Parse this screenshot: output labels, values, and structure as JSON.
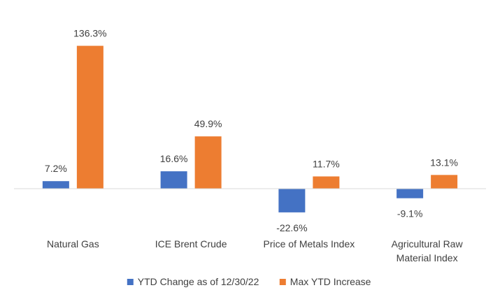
{
  "chart_data": {
    "type": "bar",
    "categories": [
      [
        "Natural Gas"
      ],
      [
        "ICE Brent Crude"
      ],
      [
        "Price of Metals Index"
      ],
      [
        "Agricultural Raw",
        "Material Index"
      ]
    ],
    "series": [
      {
        "name": "YTD Change as of 12/30/22",
        "color": "#4472C4",
        "values": [
          7.2,
          16.6,
          -22.6,
          -9.1
        ],
        "labels": [
          "7.2%",
          "16.6%",
          "-22.6%",
          "-9.1%"
        ]
      },
      {
        "name": "Max YTD Increase",
        "color": "#ED7D31",
        "values": [
          136.3,
          49.9,
          11.7,
          13.1
        ],
        "labels": [
          "136.3%",
          "49.9%",
          "11.7%",
          "13.1%"
        ]
      }
    ],
    "ylim": [
      -30,
      140
    ],
    "legend_position": "bottom",
    "grid": false
  }
}
